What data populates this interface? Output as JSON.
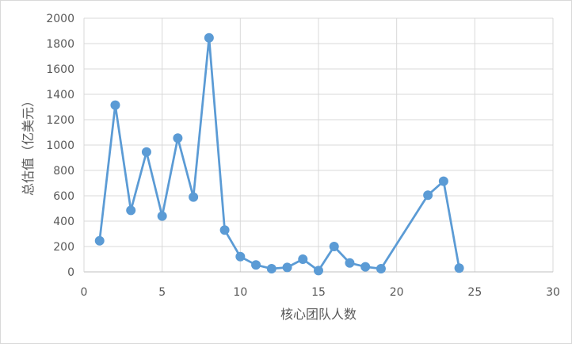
{
  "chart_data": {
    "type": "line",
    "title": "",
    "xlabel": "核心团队人数",
    "ylabel": "总估值（亿美元）",
    "xlim": [
      0,
      30
    ],
    "ylim": [
      0,
      2000
    ],
    "x_ticks": [
      "0",
      "5",
      "10",
      "15",
      "20",
      "25",
      "30"
    ],
    "y_ticks": [
      "0",
      "200",
      "400",
      "600",
      "800",
      "1000",
      "1200",
      "1400",
      "1600",
      "1800",
      "2000"
    ],
    "grid": true,
    "legend": "none",
    "series": [
      {
        "color": "#5b9bd5",
        "points": [
          {
            "x": 1,
            "y": 245
          },
          {
            "x": 2,
            "y": 1315
          },
          {
            "x": 3,
            "y": 485
          },
          {
            "x": 4,
            "y": 945
          },
          {
            "x": 5,
            "y": 440
          },
          {
            "x": 6,
            "y": 1055
          },
          {
            "x": 7,
            "y": 590
          },
          {
            "x": 8,
            "y": 1845
          },
          {
            "x": 9,
            "y": 330
          },
          {
            "x": 10,
            "y": 120
          },
          {
            "x": 11,
            "y": 55
          },
          {
            "x": 12,
            "y": 25
          },
          {
            "x": 13,
            "y": 35
          },
          {
            "x": 14,
            "y": 100
          },
          {
            "x": 15,
            "y": 10
          },
          {
            "x": 16,
            "y": 200
          },
          {
            "x": 17,
            "y": 70
          },
          {
            "x": 18,
            "y": 40
          },
          {
            "x": 19,
            "y": 25
          },
          {
            "x": 22,
            "y": 605
          },
          {
            "x": 23,
            "y": 715
          },
          {
            "x": 24,
            "y": 30
          }
        ]
      }
    ]
  }
}
